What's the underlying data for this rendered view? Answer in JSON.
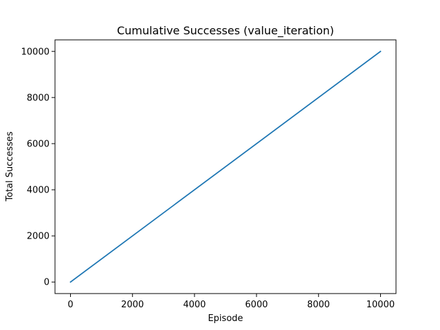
{
  "chart_data": {
    "type": "line",
    "title": "Cumulative Successes (value_iteration)",
    "xlabel": "Episode",
    "ylabel": "Total Successes",
    "xlim": [
      -500,
      10500
    ],
    "ylim": [
      -500,
      10500
    ],
    "xticks": [
      0,
      2000,
      4000,
      6000,
      8000,
      10000
    ],
    "yticks": [
      0,
      2000,
      4000,
      6000,
      8000,
      10000
    ],
    "grid": false,
    "series": [
      {
        "color": "#1f77b4",
        "x": [
          0,
          10000
        ],
        "y": [
          0,
          10000
        ]
      }
    ]
  }
}
